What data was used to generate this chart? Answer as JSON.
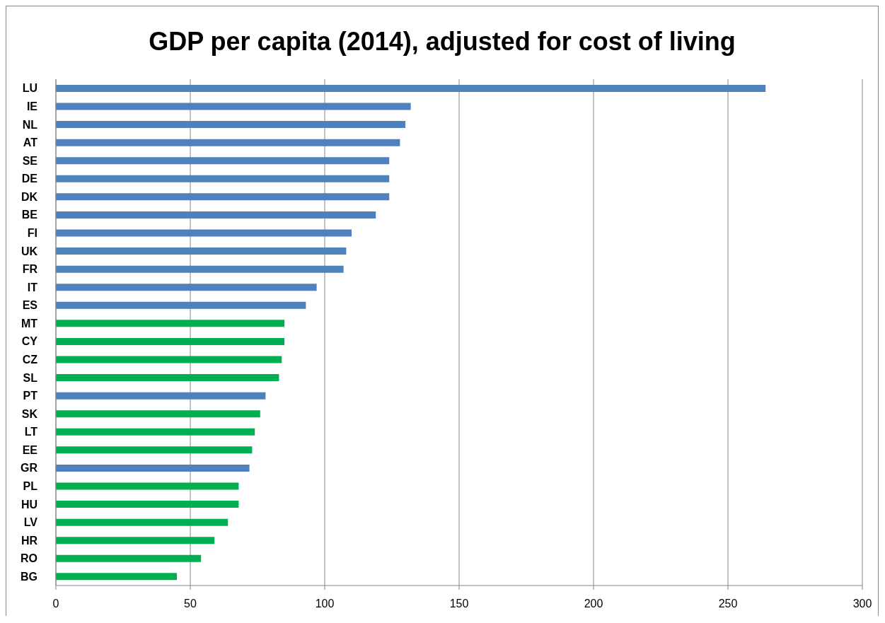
{
  "chart_data": {
    "type": "bar",
    "orientation": "horizontal",
    "title": "GDP per capita (2014), adjusted for cost of living",
    "categories": [
      "LU",
      "IE",
      "NL",
      "AT",
      "SE",
      "DE",
      "DK",
      "BE",
      "FI",
      "UK",
      "FR",
      "IT",
      "ES",
      "MT",
      "CY",
      "CZ",
      "SL",
      "PT",
      "SK",
      "LT",
      "EE",
      "GR",
      "PL",
      "HU",
      "LV",
      "HR",
      "RO",
      "BG"
    ],
    "values": [
      264,
      132,
      130,
      128,
      124,
      124,
      124,
      119,
      110,
      108,
      107,
      97,
      93,
      85,
      85,
      84,
      83,
      78,
      76,
      74,
      73,
      72,
      68,
      68,
      64,
      59,
      54,
      45
    ],
    "colors": [
      "#4f81bd",
      "#4f81bd",
      "#4f81bd",
      "#4f81bd",
      "#4f81bd",
      "#4f81bd",
      "#4f81bd",
      "#4f81bd",
      "#4f81bd",
      "#4f81bd",
      "#4f81bd",
      "#4f81bd",
      "#4f81bd",
      "#00b050",
      "#00b050",
      "#00b050",
      "#00b050",
      "#4f81bd",
      "#00b050",
      "#00b050",
      "#00b050",
      "#4f81bd",
      "#00b050",
      "#00b050",
      "#00b050",
      "#00b050",
      "#00b050",
      "#00b050"
    ],
    "xlim": [
      0,
      300
    ],
    "xticks": [
      0,
      50,
      100,
      150,
      200,
      250,
      300
    ],
    "grid": "x"
  }
}
